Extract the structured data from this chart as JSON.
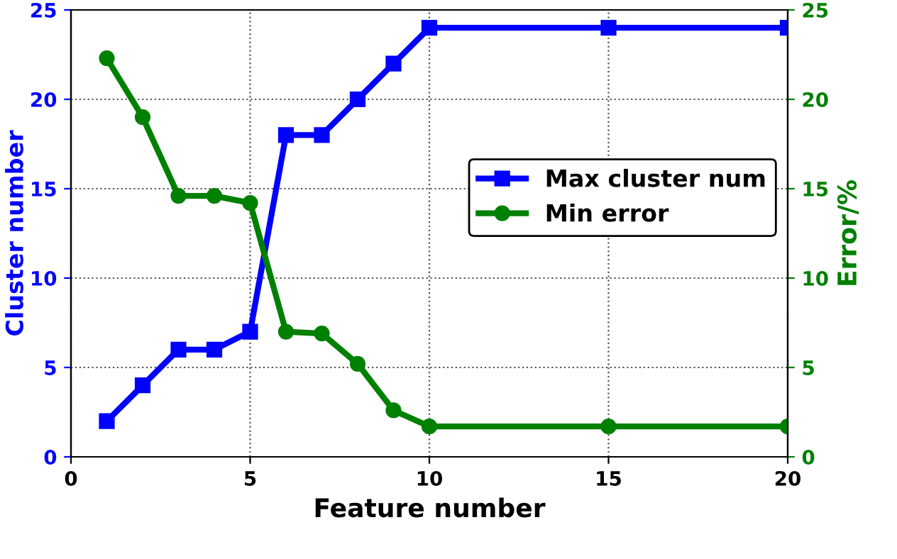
{
  "chart_data": {
    "type": "line",
    "x": [
      1,
      2,
      3,
      4,
      5,
      6,
      7,
      8,
      9,
      10,
      15,
      20
    ],
    "series": [
      {
        "name": "Max cluster num",
        "color": "#0000ff",
        "marker": "square",
        "values": [
          2,
          4,
          6,
          6,
          7,
          18,
          18,
          20,
          22,
          24,
          24,
          24
        ]
      },
      {
        "name": "Min error",
        "color": "#008000",
        "marker": "circle",
        "axis": "y2",
        "values": [
          22.3,
          19.0,
          14.6,
          14.6,
          14.2,
          7.0,
          6.9,
          5.2,
          2.6,
          1.7,
          1.7,
          1.7
        ]
      }
    ],
    "xlabel": "Feature number",
    "ylabel": "Cluster number",
    "y2label": "Error/%",
    "xlim": [
      0,
      20
    ],
    "xticks": [
      0,
      5,
      10,
      15,
      20
    ],
    "ylim": [
      0,
      25
    ],
    "yticks": [
      0,
      5,
      10,
      15,
      20,
      25
    ],
    "y2lim": [
      0,
      25
    ],
    "y2ticks": [
      0,
      5,
      10,
      15,
      20,
      25
    ],
    "grid": true,
    "legend": "right",
    "line_style": "solid"
  }
}
